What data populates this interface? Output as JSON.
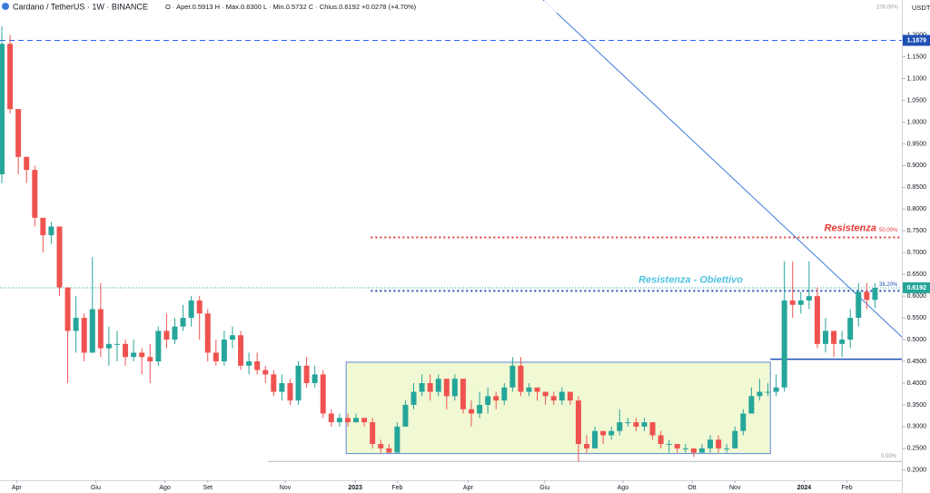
{
  "chart_data": {
    "type": "candlestick",
    "title": "Cardano / TetherUS · 1W · BINANCE",
    "ohlc_header": "O · Aper.0.5913 H · Max.0.6300 L · Min.0.5732 C · Chius.0.6192 +0.0278 (+4.70%)",
    "currency": "USDT",
    "up_color": "#26a69a",
    "down_color": "#ef5350",
    "open": [
      0.88,
      1.18,
      1.03,
      0.92,
      0.89,
      0.78,
      0.74,
      0.76,
      0.62,
      0.52,
      0.55,
      0.47,
      0.57,
      0.48,
      0.49,
      0.49,
      0.46,
      0.47,
      0.46,
      0.45,
      0.52,
      0.5,
      0.53,
      0.55,
      0.59,
      0.56,
      0.47,
      0.45,
      0.5,
      0.51,
      0.44,
      0.45,
      0.43,
      0.42,
      0.38,
      0.4,
      0.36,
      0.44,
      0.4,
      0.42,
      0.33,
      0.31,
      0.32,
      0.31,
      0.32,
      0.31,
      0.26,
      0.25,
      0.24,
      0.3,
      0.35,
      0.38,
      0.4,
      0.38,
      0.41,
      0.37,
      0.41,
      0.34,
      0.33,
      0.35,
      0.37,
      0.36,
      0.39,
      0.44,
      0.38,
      0.39,
      0.38,
      0.37,
      0.36,
      0.38,
      0.36,
      0.26,
      0.25,
      0.29,
      0.28,
      0.29,
      0.31,
      0.31,
      0.3,
      0.31,
      0.28,
      0.26,
      0.26,
      0.25,
      0.25,
      0.24,
      0.25,
      0.27,
      0.25,
      0.25,
      0.29,
      0.33,
      0.37,
      0.38,
      0.38,
      0.39,
      0.59,
      0.58,
      0.59,
      0.6,
      0.49,
      0.52,
      0.49,
      0.5,
      0.55,
      0.61,
      0.5913
    ],
    "high": [
      1.22,
      1.2,
      1.03,
      0.92,
      0.9,
      0.78,
      0.77,
      0.76,
      0.62,
      0.6,
      0.56,
      0.69,
      0.63,
      0.53,
      0.52,
      0.5,
      0.5,
      0.48,
      0.49,
      0.53,
      0.56,
      0.55,
      0.58,
      0.6,
      0.6,
      0.57,
      0.5,
      0.52,
      0.53,
      0.52,
      0.47,
      0.47,
      0.44,
      0.43,
      0.42,
      0.41,
      0.45,
      0.46,
      0.44,
      0.43,
      0.34,
      0.33,
      0.33,
      0.33,
      0.32,
      0.32,
      0.27,
      0.26,
      0.31,
      0.36,
      0.4,
      0.42,
      0.42,
      0.42,
      0.41,
      0.42,
      0.41,
      0.36,
      0.38,
      0.39,
      0.38,
      0.4,
      0.46,
      0.46,
      0.4,
      0.39,
      0.38,
      0.38,
      0.39,
      0.38,
      0.37,
      0.28,
      0.3,
      0.29,
      0.3,
      0.34,
      0.32,
      0.32,
      0.32,
      0.31,
      0.29,
      0.27,
      0.26,
      0.26,
      0.25,
      0.26,
      0.28,
      0.28,
      0.26,
      0.3,
      0.34,
      0.39,
      0.41,
      0.4,
      0.42,
      0.68,
      0.68,
      0.61,
      0.68,
      0.62,
      0.55,
      0.52,
      0.52,
      0.57,
      0.63,
      0.63,
      0.63
    ],
    "low": [
      0.86,
      1.02,
      0.88,
      0.86,
      0.76,
      0.7,
      0.72,
      0.6,
      0.4,
      0.47,
      0.45,
      0.47,
      0.46,
      0.44,
      0.45,
      0.44,
      0.45,
      0.42,
      0.4,
      0.44,
      0.48,
      0.49,
      0.52,
      0.53,
      0.5,
      0.45,
      0.44,
      0.44,
      0.48,
      0.43,
      0.42,
      0.42,
      0.4,
      0.37,
      0.36,
      0.35,
      0.35,
      0.39,
      0.39,
      0.32,
      0.3,
      0.3,
      0.3,
      0.31,
      0.3,
      0.25,
      0.24,
      0.24,
      0.24,
      0.3,
      0.34,
      0.37,
      0.36,
      0.37,
      0.34,
      0.36,
      0.33,
      0.3,
      0.32,
      0.33,
      0.34,
      0.35,
      0.38,
      0.37,
      0.37,
      0.36,
      0.35,
      0.35,
      0.35,
      0.35,
      0.22,
      0.24,
      0.25,
      0.26,
      0.27,
      0.28,
      0.3,
      0.29,
      0.29,
      0.27,
      0.25,
      0.24,
      0.24,
      0.24,
      0.23,
      0.24,
      0.24,
      0.24,
      0.24,
      0.25,
      0.28,
      0.33,
      0.36,
      0.37,
      0.37,
      0.38,
      0.55,
      0.56,
      0.57,
      0.48,
      0.47,
      0.46,
      0.46,
      0.48,
      0.53,
      0.57,
      0.5732
    ],
    "close": [
      1.18,
      1.03,
      0.92,
      0.89,
      0.78,
      0.74,
      0.76,
      0.62,
      0.52,
      0.55,
      0.47,
      0.57,
      0.48,
      0.49,
      0.49,
      0.46,
      0.47,
      0.46,
      0.45,
      0.52,
      0.5,
      0.53,
      0.55,
      0.59,
      0.56,
      0.47,
      0.45,
      0.5,
      0.51,
      0.44,
      0.45,
      0.43,
      0.42,
      0.38,
      0.4,
      0.36,
      0.44,
      0.4,
      0.42,
      0.33,
      0.31,
      0.32,
      0.31,
      0.32,
      0.31,
      0.26,
      0.25,
      0.24,
      0.3,
      0.35,
      0.38,
      0.4,
      0.38,
      0.41,
      0.37,
      0.41,
      0.34,
      0.33,
      0.35,
      0.37,
      0.36,
      0.39,
      0.44,
      0.38,
      0.39,
      0.38,
      0.37,
      0.36,
      0.38,
      0.36,
      0.26,
      0.25,
      0.29,
      0.28,
      0.29,
      0.31,
      0.31,
      0.3,
      0.31,
      0.28,
      0.26,
      0.26,
      0.25,
      0.25,
      0.24,
      0.25,
      0.27,
      0.25,
      0.25,
      0.29,
      0.33,
      0.37,
      0.38,
      0.38,
      0.39,
      0.59,
      0.58,
      0.59,
      0.6,
      0.49,
      0.52,
      0.49,
      0.5,
      0.55,
      0.61,
      0.5913,
      0.6192
    ],
    "xlim": [
      -0.22,
      109.26
    ],
    "xticks": [
      {
        "value": 1.8,
        "label": "Apr"
      },
      {
        "value": 11.4,
        "label": "Giu"
      },
      {
        "value": 19.8,
        "label": "Ago"
      },
      {
        "value": 25,
        "label": "Set"
      },
      {
        "value": 34.4,
        "label": "Nov"
      },
      {
        "value": 42.9,
        "label": "2023"
      },
      {
        "value": 48,
        "label": "Feb"
      },
      {
        "value": 56.6,
        "label": "Apr"
      },
      {
        "value": 65.9,
        "label": "Giu"
      },
      {
        "value": 75.4,
        "label": "Ago"
      },
      {
        "value": 83.8,
        "label": "Ott"
      },
      {
        "value": 89,
        "label": "Nov"
      },
      {
        "value": 97.4,
        "label": "2024"
      },
      {
        "value": 102.6,
        "label": "Feb"
      }
    ],
    "ylim": [
      0.1766,
      1.2807
    ],
    "yticks": [
      {
        "value": 0.2,
        "label": "0.2000"
      },
      {
        "value": 0.25,
        "label": "0.2500"
      },
      {
        "value": 0.3,
        "label": "0.3000"
      },
      {
        "value": 0.35,
        "label": "0.3500"
      },
      {
        "value": 0.4,
        "label": "0.4000"
      },
      {
        "value": 0.45,
        "label": "0.4500"
      },
      {
        "value": 0.5,
        "label": "0.5000"
      },
      {
        "value": 0.55,
        "label": "0.5500"
      },
      {
        "value": 0.6,
        "label": "0.6000"
      },
      {
        "value": 0.65,
        "label": "0.6500"
      },
      {
        "value": 0.7,
        "label": "0.7000"
      },
      {
        "value": 0.75,
        "label": "0.7500"
      },
      {
        "value": 0.8,
        "label": "0.8000"
      },
      {
        "value": 0.85,
        "label": "0.8500"
      },
      {
        "value": 0.9,
        "label": "0.9000"
      },
      {
        "value": 0.95,
        "label": "0.9500"
      },
      {
        "value": 1.0,
        "label": "1.0000"
      },
      {
        "value": 1.05,
        "label": "1.0500"
      },
      {
        "value": 1.1,
        "label": "1.1000"
      },
      {
        "value": 1.15,
        "label": "1.1500"
      },
      {
        "value": 1.2,
        "label": "1.2000"
      }
    ],
    "grid": false,
    "last_price": {
      "value": 0.6192,
      "label": "0.6192"
    },
    "marked_level": {
      "value": 1.1879,
      "label": "1.1879"
    },
    "fib_top": "100.00%",
    "resistance": {
      "value": 0.735,
      "from": 44.8,
      "text": "Resistenza",
      "fib": "50.00%"
    },
    "target": {
      "value": 0.612,
      "from": 44.8,
      "text": "Resistenza - Obiettivo",
      "fib": "38.20%"
    },
    "bottom": {
      "value": 0.22,
      "from": 32.3,
      "fib": "0.00%"
    },
    "support": {
      "value": 0.455,
      "from": 93.3
    },
    "range_box": {
      "x": [
        41.8,
        93.3
      ],
      "y": [
        0.238,
        0.448
      ]
    },
    "trendline": {
      "x": [
        65.7,
        109.26
      ],
      "y": [
        1.2807,
        0.506
      ]
    }
  }
}
